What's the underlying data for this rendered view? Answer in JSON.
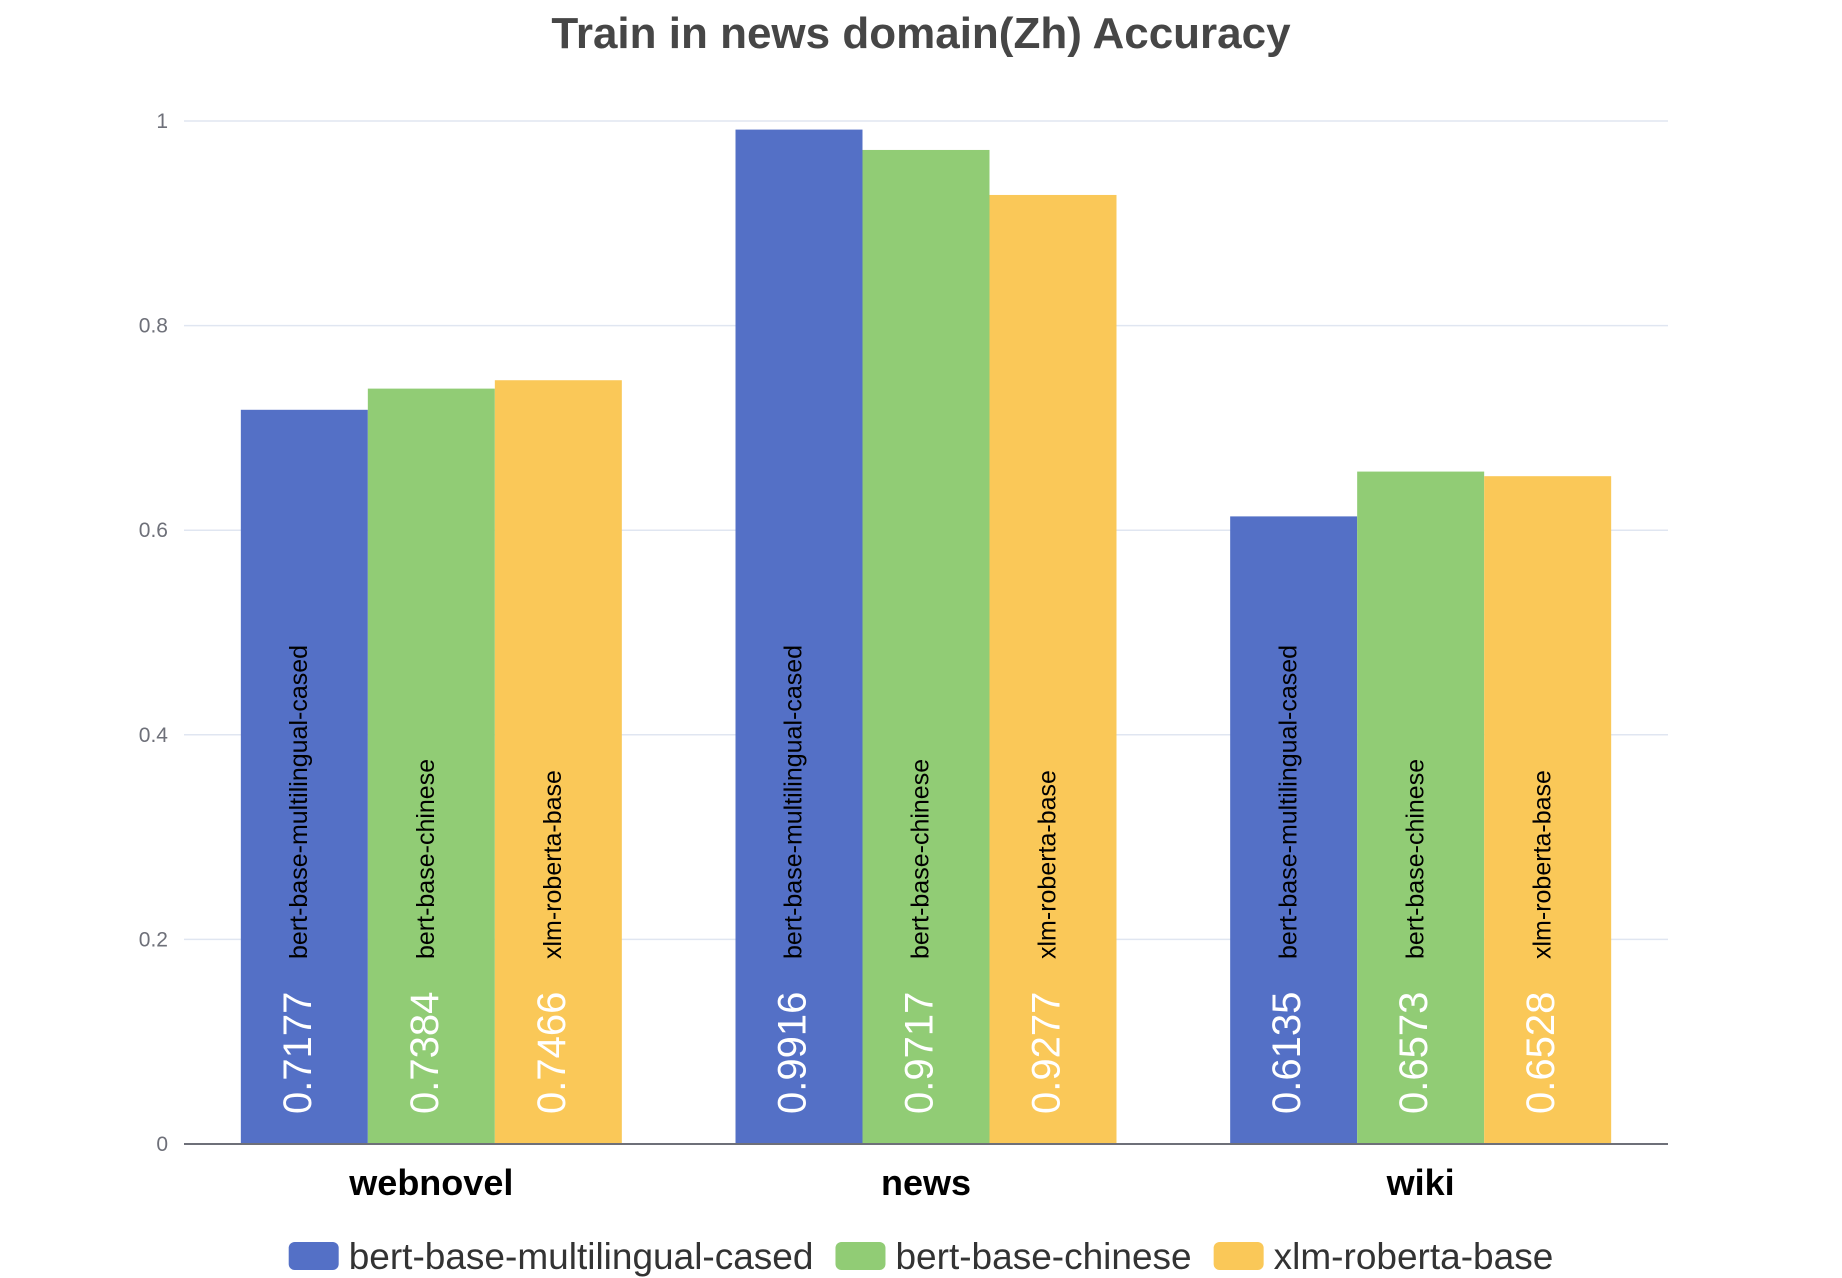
{
  "chart_data": {
    "type": "bar",
    "title": "Train in news domain(Zh) Accuracy",
    "categories": [
      "webnovel",
      "news",
      "wiki"
    ],
    "series": [
      {
        "name": "bert-base-multilingual-cased",
        "values": [
          0.7177,
          0.9916,
          0.6135
        ],
        "color": "#5470c6"
      },
      {
        "name": "bert-base-chinese",
        "values": [
          0.7384,
          0.9717,
          0.6573
        ],
        "color": "#91cc75"
      },
      {
        "name": "xlm-roberta-base",
        "values": [
          0.7466,
          0.9277,
          0.6528
        ],
        "color": "#fac858"
      }
    ],
    "value_labels": {
      "bert-base-multilingual-cased": [
        "0.7177",
        "0.9916",
        "0.6135"
      ],
      "bert-base-chinese": [
        "0.7384",
        "0.9717",
        "0.6573"
      ],
      "xlm-roberta-base": [
        "0.7466",
        "0.9277",
        "0.6528"
      ]
    },
    "ylim": [
      0,
      1
    ],
    "yticks": [
      "0",
      "0.2",
      "0.4",
      "0.6",
      "0.8",
      "1"
    ],
    "xlabel": "",
    "ylabel": "",
    "grid": true,
    "legend_position": "bottom"
  }
}
